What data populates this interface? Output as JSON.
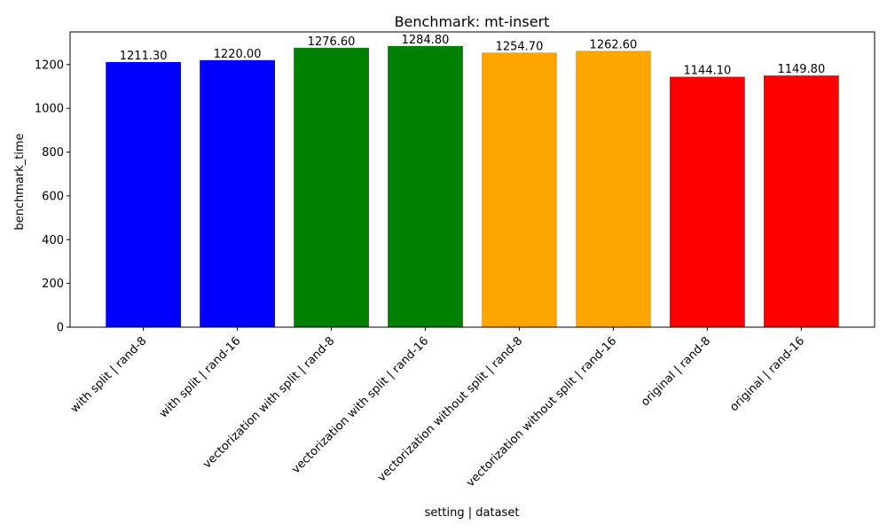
{
  "chart_data": {
    "type": "bar",
    "title": "Benchmark: mt-insert",
    "xlabel": "setting | dataset",
    "ylabel": "benchmark_time",
    "ylim": [
      0,
      1349
    ],
    "yticks": [
      0,
      200,
      400,
      600,
      800,
      1000,
      1200
    ],
    "grid": false,
    "legend": "none",
    "categories": [
      "with split | rand-8",
      "with split | rand-16",
      "vectorization with split | rand-8",
      "vectorization with split | rand-16",
      "vectorization without split | rand-8",
      "vectorization without split | rand-16",
      "original | rand-8",
      "original | rand-16"
    ],
    "values": [
      1211.3,
      1220.0,
      1276.6,
      1284.8,
      1254.7,
      1262.6,
      1144.1,
      1149.8
    ],
    "value_labels": [
      "1211.30",
      "1220.00",
      "1276.60",
      "1284.80",
      "1254.70",
      "1262.60",
      "1144.10",
      "1149.80"
    ],
    "colors": [
      "#0000ff",
      "#0000ff",
      "#008000",
      "#008000",
      "#ffa500",
      "#ffa500",
      "#ff0000",
      "#ff0000"
    ]
  }
}
